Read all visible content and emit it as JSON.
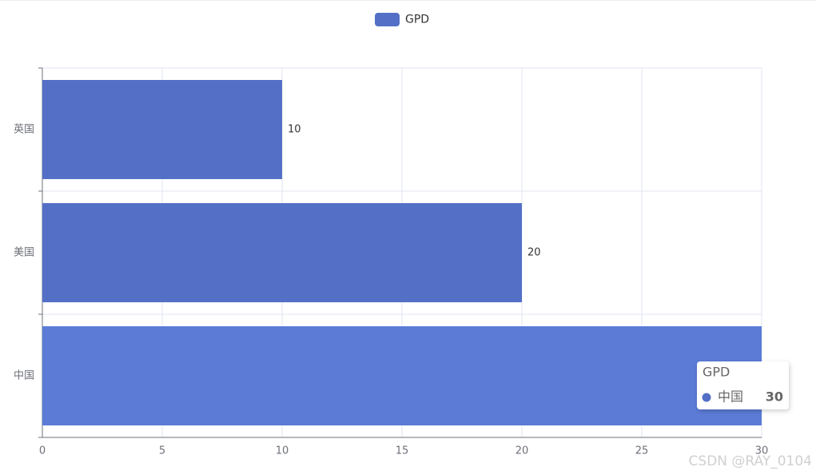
{
  "chart_data": {
    "type": "hbar",
    "categories": [
      "中国",
      "美国",
      "英国"
    ],
    "series": [
      {
        "name": "GPD",
        "color": "#5470c6",
        "values": [
          30,
          20,
          10
        ]
      }
    ],
    "xlim": [
      0,
      30
    ],
    "xticks": [
      0,
      5,
      10,
      15,
      20,
      25,
      30
    ],
    "grid": true,
    "legend": "top",
    "watermark": "CSDN @RAY_0104"
  }
}
